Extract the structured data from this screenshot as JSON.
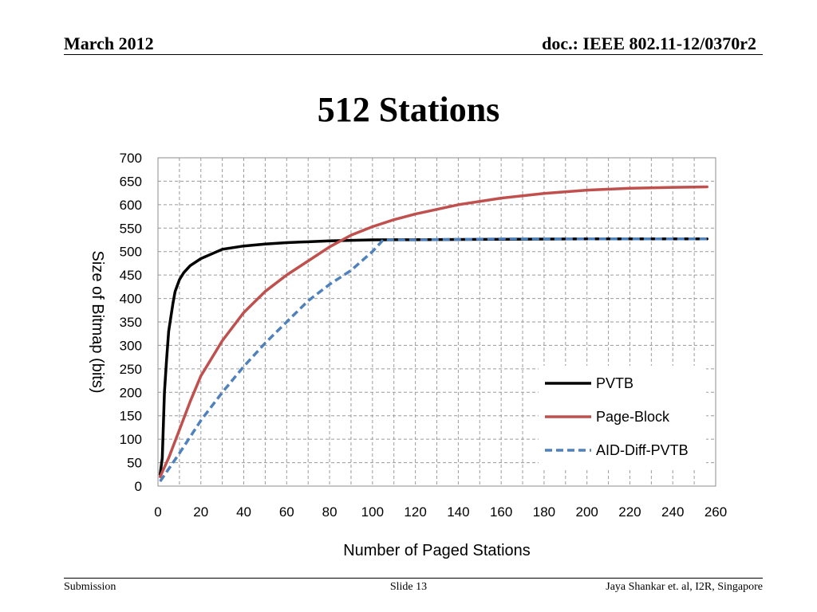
{
  "header": {
    "date": "March 2012",
    "doc": "doc.: IEEE 802.11-12/0370r2"
  },
  "slide": {
    "title": "512 Stations"
  },
  "footer": {
    "left": "Submission",
    "center": "Slide 13",
    "right": "Jaya Shankar et. al, I2R, Singapore"
  },
  "chart_data": {
    "type": "line",
    "title": "",
    "xlabel": "Number of Paged Stations",
    "ylabel": "Size of Bitmap (bits)",
    "xlim": [
      0,
      260
    ],
    "ylim": [
      0,
      700
    ],
    "xticks": [
      0,
      20,
      40,
      60,
      80,
      100,
      120,
      140,
      160,
      180,
      200,
      220,
      240,
      260
    ],
    "yticks": [
      0,
      50,
      100,
      150,
      200,
      250,
      300,
      350,
      400,
      450,
      500,
      550,
      600,
      650,
      700
    ],
    "grid": true,
    "legend_position": "bottom-right",
    "series": [
      {
        "name": "PVTB",
        "color": "#000000",
        "style": "solid",
        "points": [
          [
            1,
            25
          ],
          [
            2,
            60
          ],
          [
            3,
            200
          ],
          [
            4,
            270
          ],
          [
            5,
            330
          ],
          [
            6,
            360
          ],
          [
            7,
            390
          ],
          [
            8,
            415
          ],
          [
            10,
            440
          ],
          [
            12,
            455
          ],
          [
            15,
            470
          ],
          [
            20,
            485
          ],
          [
            25,
            495
          ],
          [
            30,
            505
          ],
          [
            40,
            512
          ],
          [
            50,
            516
          ],
          [
            60,
            519
          ],
          [
            80,
            523
          ],
          [
            100,
            525
          ],
          [
            150,
            526
          ],
          [
            200,
            527
          ],
          [
            256,
            527
          ]
        ]
      },
      {
        "name": "Page-Block",
        "color": "#c0504d",
        "style": "solid",
        "points": [
          [
            1,
            20
          ],
          [
            5,
            60
          ],
          [
            10,
            120
          ],
          [
            15,
            180
          ],
          [
            20,
            235
          ],
          [
            30,
            310
          ],
          [
            40,
            370
          ],
          [
            50,
            415
          ],
          [
            60,
            450
          ],
          [
            70,
            480
          ],
          [
            80,
            510
          ],
          [
            90,
            535
          ],
          [
            100,
            553
          ],
          [
            110,
            568
          ],
          [
            120,
            580
          ],
          [
            140,
            600
          ],
          [
            160,
            614
          ],
          [
            180,
            624
          ],
          [
            200,
            631
          ],
          [
            220,
            635
          ],
          [
            240,
            637
          ],
          [
            256,
            638
          ]
        ]
      },
      {
        "name": "AID-Diff-PVTB",
        "color": "#4f81bd",
        "style": "dashed",
        "points": [
          [
            1,
            10
          ],
          [
            10,
            70
          ],
          [
            20,
            140
          ],
          [
            30,
            200
          ],
          [
            40,
            255
          ],
          [
            50,
            305
          ],
          [
            60,
            350
          ],
          [
            70,
            395
          ],
          [
            80,
            430
          ],
          [
            90,
            460
          ],
          [
            100,
            500
          ],
          [
            105,
            525
          ],
          [
            120,
            525
          ],
          [
            140,
            526
          ],
          [
            160,
            527
          ],
          [
            200,
            527
          ],
          [
            256,
            527
          ]
        ]
      }
    ]
  }
}
